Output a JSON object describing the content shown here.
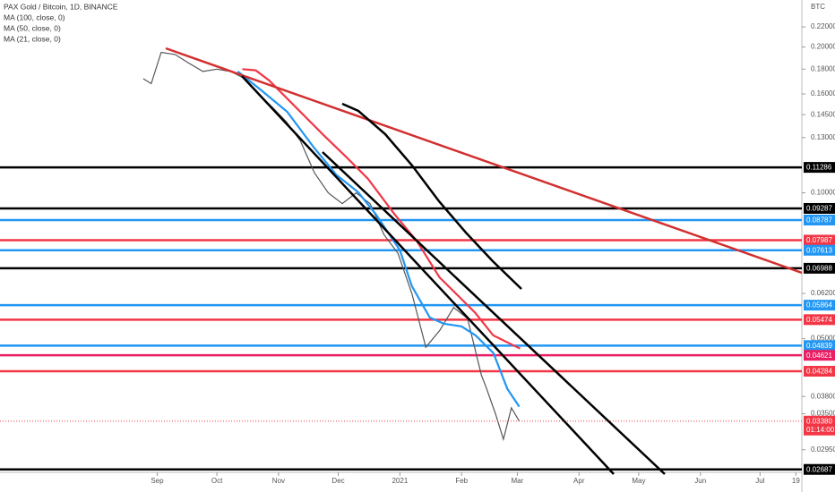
{
  "chart_data": {
    "type": "line",
    "title": "PAX Gold / Bitcoin, 1D, BINANCE",
    "legend_lines": [
      "MA (100, close, 0)",
      "MA (50, close, 0)",
      "MA (21, close, 0)"
    ],
    "currency": "BTC",
    "log_scale": true,
    "xlim": [
      -79,
      324
    ],
    "xticks": [
      {
        "value": 0,
        "label": "Sep"
      },
      {
        "value": 30,
        "label": "Oct"
      },
      {
        "value": 61,
        "label": "Nov"
      },
      {
        "value": 91,
        "label": "Dec"
      },
      {
        "value": 122,
        "label": "2021"
      },
      {
        "value": 153,
        "label": "Feb"
      },
      {
        "value": 181,
        "label": "Mar"
      },
      {
        "value": 212,
        "label": "Apr"
      },
      {
        "value": 242,
        "label": "May"
      },
      {
        "value": 273,
        "label": "Jun"
      },
      {
        "value": 303,
        "label": "Jul"
      },
      {
        "value": 321,
        "label": "19"
      }
    ],
    "ylim": [
      0.0265,
      0.25
    ],
    "yticks": [
      {
        "value": 0.22,
        "label": "0.22000"
      },
      {
        "value": 0.2,
        "label": "0.20000"
      },
      {
        "value": 0.18,
        "label": "0.18000"
      },
      {
        "value": 0.16,
        "label": "0.16000"
      },
      {
        "value": 0.145,
        "label": "0.14500"
      },
      {
        "value": 0.13,
        "label": "0.13000"
      },
      {
        "value": 0.1,
        "label": "0.10000"
      },
      {
        "value": 0.062,
        "label": "0.06200"
      },
      {
        "value": 0.05,
        "label": "0.05000"
      },
      {
        "value": 0.038,
        "label": "0.03800"
      },
      {
        "value": 0.035,
        "label": "0.03500"
      },
      {
        "value": 0.0295,
        "label": "0.02950"
      }
    ],
    "price": {
      "color": "#555555",
      "x": [
        -7,
        -3,
        2,
        9,
        16,
        23,
        30,
        37,
        44,
        51,
        58,
        65,
        72,
        79,
        86,
        93,
        100,
        107,
        114,
        121,
        128,
        135,
        142,
        149,
        156,
        163,
        165,
        170,
        174,
        178,
        182
      ],
      "values": [
        0.172,
        0.168,
        0.195,
        0.193,
        0.185,
        0.178,
        0.18,
        0.178,
        0.172,
        0.16,
        0.15,
        0.14,
        0.128,
        0.11,
        0.1,
        0.095,
        0.1,
        0.095,
        0.082,
        0.075,
        0.062,
        0.048,
        0.052,
        0.058,
        0.055,
        0.042,
        0.04,
        0.035,
        0.031,
        0.036,
        0.0338
      ]
    },
    "series": [
      {
        "name": "MA (21, close, 0)",
        "color": "#2196f3",
        "x": [
          40.5,
          51.8,
          65.3,
          78.8,
          90,
          101,
          110,
          122,
          128,
          137,
          144,
          153,
          160,
          169,
          176,
          182
        ],
        "values": [
          0.178,
          0.1634,
          0.147,
          0.124,
          0.109,
          0.1003,
          0.0902,
          0.0761,
          0.0642,
          0.0553,
          0.0537,
          0.053,
          0.0508,
          0.0467,
          0.0394,
          0.0362
        ]
      },
      {
        "name": "MA (50, close, 0)",
        "color": "#f23645",
        "x": [
          42.8,
          49.5,
          56.3,
          69.8,
          83.3,
          94.6,
          105.9,
          119.4,
          130.6,
          141.9,
          150.9,
          159.9,
          168.9,
          182.4
        ],
        "values": [
          0.18,
          0.179,
          0.1705,
          0.15,
          0.132,
          0.119,
          0.107,
          0.0902,
          0.0794,
          0.0669,
          0.0615,
          0.0565,
          0.0508,
          0.0477
        ]
      }
    ],
    "levels": [
      {
        "value": 0.11286,
        "color": "#000000"
      },
      {
        "value": 0.09287,
        "color": "#000000"
      },
      {
        "value": 0.08787,
        "color": "#2196f3"
      },
      {
        "value": 0.07987,
        "color": "#f23645"
      },
      {
        "value": 0.07613,
        "color": "#2196f3"
      },
      {
        "value": 0.06988,
        "color": "#000000"
      },
      {
        "value": 0.05864,
        "color": "#2196f3"
      },
      {
        "value": 0.05474,
        "color": "#f23645"
      },
      {
        "value": 0.04839,
        "color": "#2196f3"
      },
      {
        "value": 0.04621,
        "color": "#e91e63"
      },
      {
        "value": 0.04284,
        "color": "#f23645"
      },
      {
        "value": 0.02687,
        "color": "#000000"
      }
    ],
    "last_price": {
      "value": 0.0338,
      "label": "0.03380",
      "countdown": "01:14:00",
      "color": "#f23645"
    }
  }
}
